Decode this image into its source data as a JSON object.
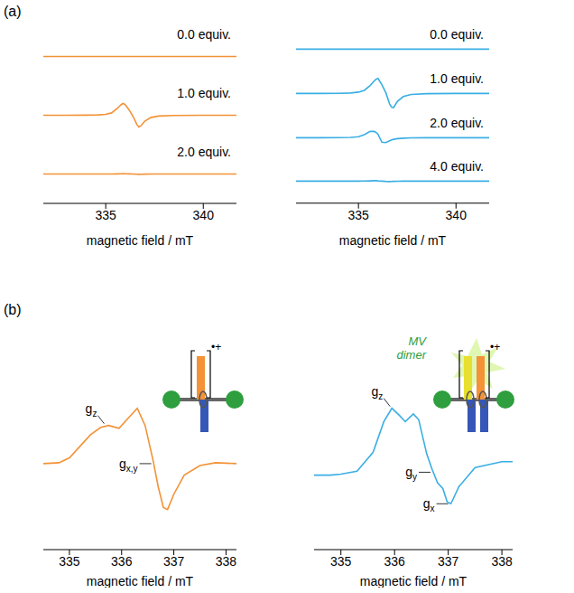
{
  "chart_data": [
    {
      "type": "line",
      "title": "(a)",
      "xlabel": "magnetic field / mT",
      "tick_labels": "x",
      "x": [
        331.8,
        333,
        334,
        334.6,
        335,
        335.3,
        335.6,
        335.8,
        335.9,
        336.0,
        336.2,
        336.4,
        336.6,
        336.7,
        336.8,
        337.0,
        337.3,
        337.7,
        338.5,
        340,
        341.7
      ],
      "xlim": [
        331.8,
        341.7
      ],
      "xticks": [
        335,
        340
      ],
      "ylim": [
        -2.5,
        2.5
      ],
      "series": [
        {
          "name": "0.0 equiv.",
          "color": "#f39237",
          "values": [
            0,
            0,
            0,
            0,
            0,
            0,
            0,
            0,
            0,
            0,
            0,
            0,
            0,
            0,
            0,
            0,
            0,
            0,
            0,
            0,
            0
          ]
        },
        {
          "name": "1.0 equiv.",
          "color": "#f39237",
          "values": [
            0,
            0,
            0.01,
            0.03,
            0.08,
            0.2,
            0.6,
            0.93,
            1.0,
            0.9,
            0.45,
            -0.1,
            -0.8,
            -1.0,
            -0.9,
            -0.5,
            -0.2,
            -0.07,
            -0.02,
            0,
            0
          ]
        },
        {
          "name": "2.0 equiv.",
          "color": "#f39237",
          "values": [
            0,
            0,
            0,
            0,
            0,
            0,
            0.01,
            0.02,
            0.03,
            0.02,
            0.01,
            0,
            -0.02,
            -0.03,
            -0.02,
            -0.01,
            0,
            0,
            0,
            0,
            0
          ]
        }
      ]
    },
    {
      "type": "line",
      "xlabel": "magnetic field / mT",
      "tick_labels": "x",
      "x": [
        331.8,
        333,
        334,
        334.6,
        335,
        335.3,
        335.6,
        335.8,
        335.9,
        336.0,
        336.2,
        336.4,
        336.6,
        336.7,
        336.8,
        337.0,
        337.3,
        337.7,
        338.5,
        340,
        341.7
      ],
      "xlim": [
        331.8,
        341.7
      ],
      "xticks": [
        335,
        340
      ],
      "ylim": [
        -2.5,
        2.5
      ],
      "series": [
        {
          "name": "0.0 equiv.",
          "color": "#3aaee4",
          "values": [
            0,
            0,
            0,
            0,
            0,
            0,
            0,
            0,
            0,
            0,
            0,
            0,
            0,
            0,
            0,
            0,
            0,
            0,
            0,
            0,
            0
          ]
        },
        {
          "name": "1.0 equiv.",
          "color": "#3aaee4",
          "values": [
            0,
            0,
            0.01,
            0.05,
            0.15,
            0.35,
            0.9,
            1.4,
            1.62,
            1.7,
            1.0,
            0.1,
            -1.2,
            -1.55,
            -1.6,
            -0.9,
            -0.35,
            -0.12,
            -0.03,
            0,
            0
          ]
        },
        {
          "name": "2.0 equiv.",
          "color": "#3aaee4",
          "values": [
            0,
            0,
            0.01,
            0.04,
            0.12,
            0.35,
            0.72,
            0.72,
            0.6,
            0.4,
            -0.5,
            -0.55,
            -0.35,
            -0.25,
            -0.18,
            -0.1,
            -0.05,
            -0.02,
            0,
            0,
            0
          ]
        },
        {
          "name": "4.0 equiv.",
          "color": "#3aaee4",
          "values": [
            0,
            0,
            0,
            0,
            0,
            0.01,
            0.03,
            0.05,
            0.05,
            0.03,
            0,
            -0.03,
            -0.05,
            -0.04,
            -0.03,
            -0.01,
            0,
            0,
            0,
            0,
            0
          ]
        }
      ]
    },
    {
      "type": "line",
      "title": "(b)",
      "xlabel": "magnetic field / mT",
      "tick_labels": "x",
      "x": [
        334.5,
        334.8,
        335.0,
        335.2,
        335.4,
        335.6,
        335.75,
        335.95,
        336.1,
        336.3,
        336.45,
        336.6,
        336.7,
        336.8,
        336.88,
        337.0,
        337.2,
        337.5,
        337.8,
        338.2
      ],
      "xlim": [
        334.5,
        338.2
      ],
      "xticks": [
        335,
        336,
        337,
        338
      ],
      "ylim": [
        -4.5,
        7
      ],
      "series": [
        {
          "color": "#f39237",
          "values": [
            0,
            0.05,
            0.3,
            0.9,
            1.5,
            1.9,
            2.0,
            1.85,
            2.3,
            2.9,
            2.0,
            0.2,
            -1.2,
            -2.3,
            -2.4,
            -1.6,
            -0.6,
            -0.1,
            0.05,
            0
          ]
        }
      ],
      "annotations": [
        {
          "text": "g",
          "subscript": "z",
          "x": 335.7,
          "y": 2.0
        },
        {
          "text": "g",
          "subscript": "x,y",
          "x": 336.62,
          "y": 0.0
        }
      ],
      "inset_labels": [
        "•+"
      ]
    },
    {
      "type": "line",
      "xlabel": "magnetic field / mT",
      "tick_labels": "x",
      "x": [
        334.5,
        334.8,
        335.0,
        335.3,
        335.6,
        335.8,
        335.95,
        336.1,
        336.2,
        336.35,
        336.45,
        336.6,
        336.7,
        336.8,
        336.9,
        336.98,
        337.05,
        337.2,
        337.5,
        338.0,
        338.2
      ],
      "xlim": [
        334.5,
        338.2
      ],
      "xticks": [
        335,
        336,
        337,
        338
      ],
      "ylim": [
        -4.5,
        7
      ],
      "series": [
        {
          "color": "#3aaee4",
          "values": [
            -0.6,
            -0.6,
            -0.55,
            -0.4,
            0.6,
            2.2,
            2.9,
            2.5,
            2.2,
            2.6,
            2.3,
            0.5,
            -0.3,
            -1.0,
            -1.3,
            -2.0,
            -2.1,
            -1.2,
            -0.2,
            0.1,
            0.1
          ]
        }
      ],
      "annotations": [
        {
          "text": "g",
          "subscript": "z",
          "x": 335.95,
          "y": 2.9
        },
        {
          "text": "g",
          "subscript": "y",
          "x": 336.72,
          "y": -0.45
        },
        {
          "text": "g",
          "subscript": "x",
          "x": 337.05,
          "y": -2.1
        }
      ],
      "inset_labels": [
        "MV dimer",
        "•+"
      ]
    }
  ]
}
